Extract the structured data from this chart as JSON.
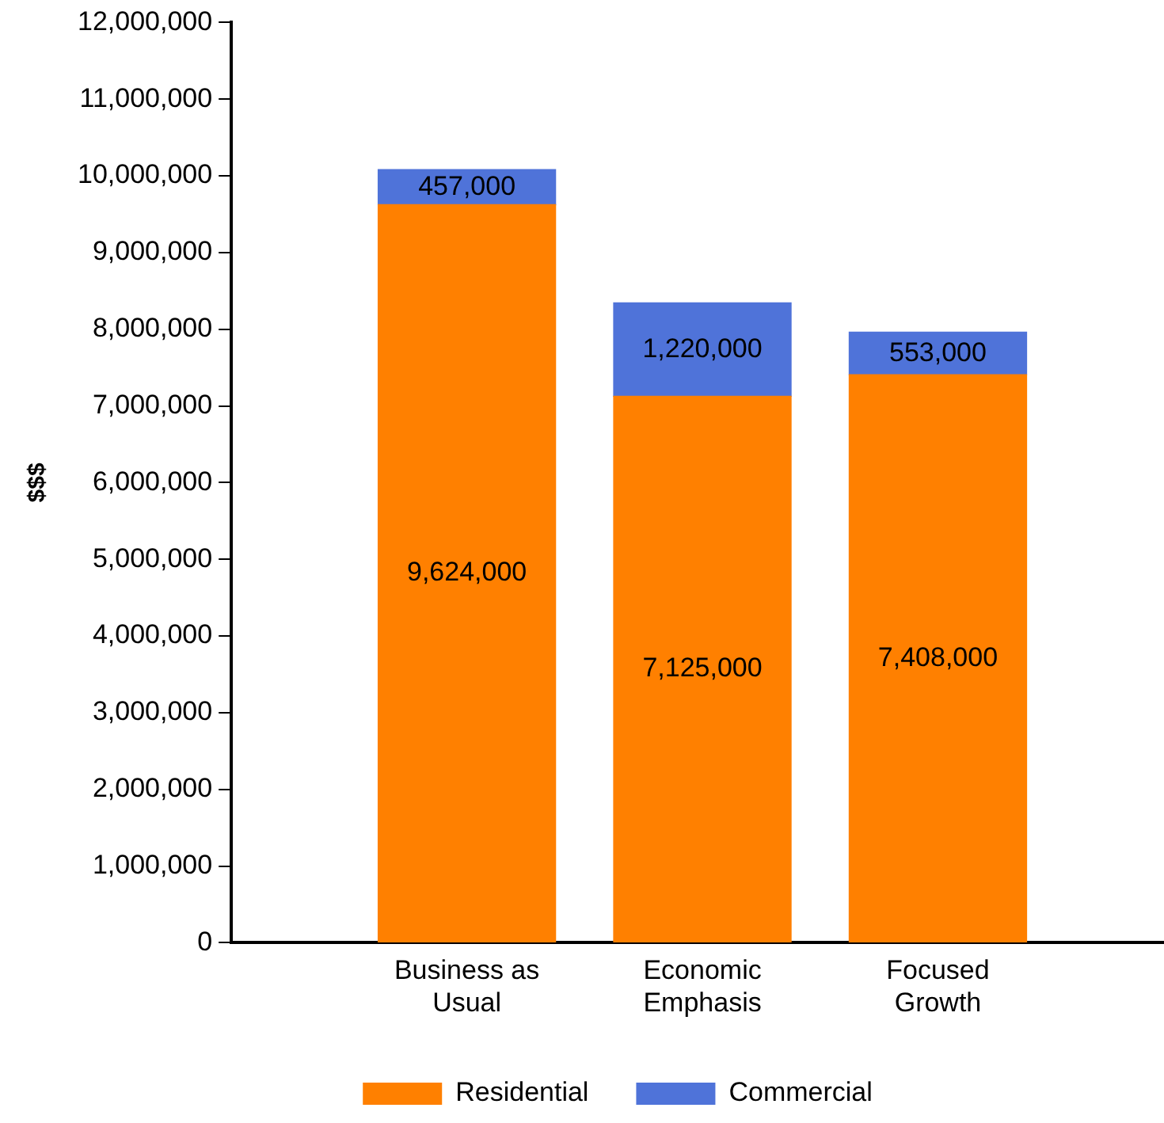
{
  "chart_data": {
    "type": "bar",
    "stacked": true,
    "ylabel": "$$$",
    "categories": [
      "Business as Usual",
      "Economic Emphasis",
      "Focused Growth"
    ],
    "series": [
      {
        "name": "Residential",
        "color": "#ff8000",
        "values": [
          9624000,
          7125000,
          7408000
        ],
        "value_labels": [
          "9,624,000",
          "7,125,000",
          "7,408,000"
        ]
      },
      {
        "name": "Commercial",
        "color": "#4f73d9",
        "values": [
          457000,
          1220000,
          553000
        ],
        "value_labels": [
          "457,000",
          "1,220,000",
          "553,000"
        ]
      }
    ],
    "ylim": [
      0,
      12000000
    ],
    "yticks": [
      0,
      {
        "value": 1000000,
        "label": "1,000,000"
      },
      {
        "value": 2000000,
        "label": "2,000,000"
      },
      {
        "value": 3000000,
        "label": "3,000,000"
      },
      {
        "value": 4000000,
        "label": "4,000,000"
      },
      {
        "value": 5000000,
        "label": "5,000,000"
      },
      {
        "value": 6000000,
        "label": "6,000,000"
      },
      {
        "value": 7000000,
        "label": "7,000,000"
      },
      {
        "value": 8000000,
        "label": "8,000,000"
      },
      {
        "value": 9000000,
        "label": "9,000,000"
      },
      {
        "value": 10000000,
        "label": "10,000,000"
      },
      {
        "value": 11000000,
        "label": "11,000,000"
      },
      {
        "value": 12000000,
        "label": "12,000,000"
      }
    ],
    "grid": false,
    "legend": "bottom"
  }
}
